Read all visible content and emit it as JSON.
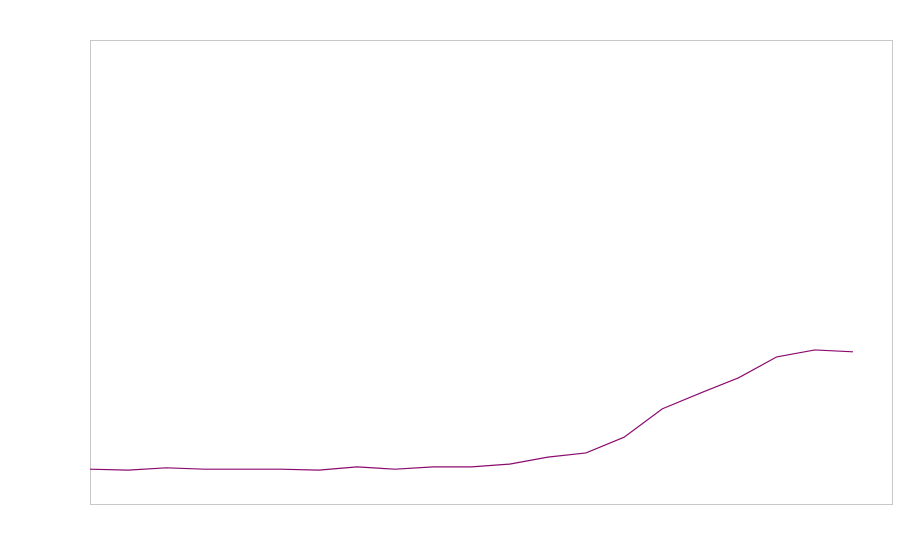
{
  "chart_data": {
    "type": "line",
    "categories": [
      null,
      null,
      null,
      null,
      null,
      null,
      null,
      null,
      null,
      null,
      null,
      null,
      null,
      null,
      null,
      null,
      null,
      null,
      null,
      null,
      null
    ],
    "series": [
      {
        "color": "#8b0a6e",
        "values": [
          7.5,
          7.3,
          7.8,
          7.5,
          7.5,
          7.5,
          7.3,
          8.0,
          7.5,
          8.0,
          8.0,
          8.6,
          10.1,
          11.0,
          14.4,
          20.5,
          23.9,
          27.2,
          31.7,
          33.2,
          32.8
        ]
      }
    ],
    "ylim": [
      0,
      100
    ]
  }
}
